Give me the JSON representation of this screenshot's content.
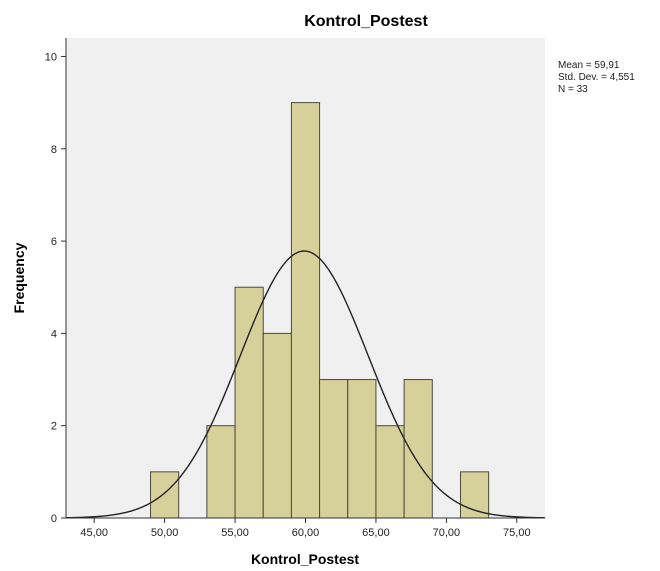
{
  "chart_data": {
    "type": "bar",
    "title": "Kontrol_Postest",
    "xlabel": "Kontrol_Postest",
    "ylabel": "Frequency",
    "xlim": [
      43,
      77
    ],
    "ylim": [
      0,
      10.4
    ],
    "x_ticks": [
      {
        "value": 45,
        "label": "45,00"
      },
      {
        "value": 50,
        "label": "50,00"
      },
      {
        "value": 55,
        "label": "55,00"
      },
      {
        "value": 60,
        "label": "60,00"
      },
      {
        "value": 65,
        "label": "65,00"
      },
      {
        "value": 70,
        "label": "70,00"
      },
      {
        "value": 75,
        "label": "75,00"
      }
    ],
    "y_ticks": [
      {
        "value": 0,
        "label": "0"
      },
      {
        "value": 2,
        "label": "2"
      },
      {
        "value": 4,
        "label": "4"
      },
      {
        "value": 6,
        "label": "6"
      },
      {
        "value": 8,
        "label": "8"
      },
      {
        "value": 10,
        "label": "10"
      }
    ],
    "bins": [
      {
        "start": 49,
        "end": 51,
        "frequency": 1
      },
      {
        "start": 53,
        "end": 55,
        "frequency": 2
      },
      {
        "start": 55,
        "end": 57,
        "frequency": 5
      },
      {
        "start": 57,
        "end": 59,
        "frequency": 4
      },
      {
        "start": 59,
        "end": 61,
        "frequency": 9
      },
      {
        "start": 61,
        "end": 63,
        "frequency": 3
      },
      {
        "start": 63,
        "end": 65,
        "frequency": 3
      },
      {
        "start": 65,
        "end": 67,
        "frequency": 2
      },
      {
        "start": 67,
        "end": 69,
        "frequency": 3
      },
      {
        "start": 71,
        "end": 73,
        "frequency": 1
      }
    ],
    "normal_curve": {
      "mean": 59.91,
      "sd": 4.551,
      "n": 33,
      "bin_width": 2
    },
    "stats": {
      "mean": "Mean = 59,91",
      "std_dev": "Std. Dev. = 4,551",
      "n": "N = 33"
    },
    "colors": {
      "bar_fill": "#d6d09a",
      "bar_stroke": "#4a4a3a",
      "plot_bg": "#f0f0f0",
      "curve": "#222222"
    },
    "grid": false
  }
}
